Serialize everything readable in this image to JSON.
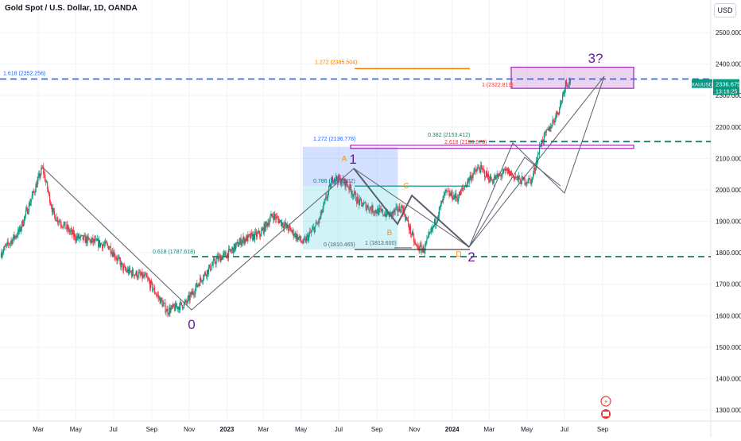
{
  "header": {
    "title": "Gold Spot / U.S. Dollar, 1D, OANDA",
    "currency": "USD"
  },
  "price_tag": {
    "symbol": "XAUUSD",
    "price": "2336.675",
    "countdown": "13:16:25",
    "color": "#089981"
  },
  "chart_data": {
    "type": "candlestick",
    "y_ticks": [
      "2500.000",
      "2400.000",
      "2300.000",
      "2200.000",
      "2100.000",
      "2000.000",
      "1900.000",
      "1800.000",
      "1700.000",
      "1600.000",
      "1500.000",
      "1400.000",
      "1300.000"
    ],
    "ylim": [
      1290,
      2555
    ],
    "x_ticks": [
      "Mar",
      "May",
      "Jul",
      "Sep",
      "Nov",
      "2023",
      "Mar",
      "May",
      "Jul",
      "Sep",
      "Nov",
      "2024",
      "Mar",
      "May",
      "Jul",
      "Sep"
    ],
    "key_points": [
      {
        "date": "2022-03-08",
        "price": 2070
      },
      {
        "date": "2022-09-28",
        "price": 1615
      },
      {
        "date": "2023-05-04",
        "price": 2067
      },
      {
        "date": "2023-10-05",
        "price": 1810
      },
      {
        "date": "2024-04-12",
        "price": 2360
      }
    ],
    "wave_labels": [
      {
        "text": "0",
        "color": "#6a1b9a",
        "date": "2022-09-28",
        "price": 1615
      },
      {
        "text": "1",
        "color": "#6a1b9a",
        "date": "2023-05-04",
        "price": 2067
      },
      {
        "text": "2",
        "color": "#6a1b9a",
        "date": "2023-10-05",
        "price": 1810
      },
      {
        "text": "3?",
        "color": "#6a1b9a",
        "date": "2024-04-12",
        "price": 2360
      }
    ],
    "abcd_labels": [
      {
        "text": "A",
        "color": "#f7931a"
      },
      {
        "text": "B",
        "color": "#f7931a"
      },
      {
        "text": "C",
        "color": "#f7931a"
      },
      {
        "text": "D",
        "color": "#f7931a"
      }
    ],
    "levels": [
      {
        "label": "1.618 (2352.256)",
        "price": 2352.256,
        "color": "#2962ff",
        "style": "dashed"
      },
      {
        "label": "0.618 (1787.618)",
        "price": 1787.618,
        "color": "#1b7f6a",
        "style": "dashed"
      },
      {
        "label": "0.382 (2153.412)",
        "price": 2153.412,
        "color": "#1b7f6a",
        "style": "dashed"
      },
      {
        "label": "1.272 (2385.504)",
        "price": 2385.504,
        "color": "#f57c00",
        "style": "solid"
      },
      {
        "label": "1.272 (2136.778)",
        "price": 2136.778,
        "color": "#9c27b0",
        "style": "solid"
      },
      {
        "label": "2.618 (2136.673)",
        "price": 2136.673,
        "color": "#e53935",
        "style": "solid"
      },
      {
        "label": "0.786 (2011.902)",
        "price": 2011.902,
        "color": "#00897b",
        "style": "solid"
      },
      {
        "label": "0 (1810.465)",
        "price": 1810.465,
        "color": "#131722",
        "style": "solid"
      },
      {
        "label": "1 (1813.600)",
        "price": 1813.6,
        "color": "#131722",
        "style": "solid"
      },
      {
        "label": "1 (2322.819)",
        "price": 2322.819,
        "color": "#e53935",
        "style": "solid"
      }
    ],
    "colors": {
      "up": "#089981",
      "down": "#f23645",
      "grid": "#f0f3fa",
      "axis_text": "#131722"
    }
  }
}
